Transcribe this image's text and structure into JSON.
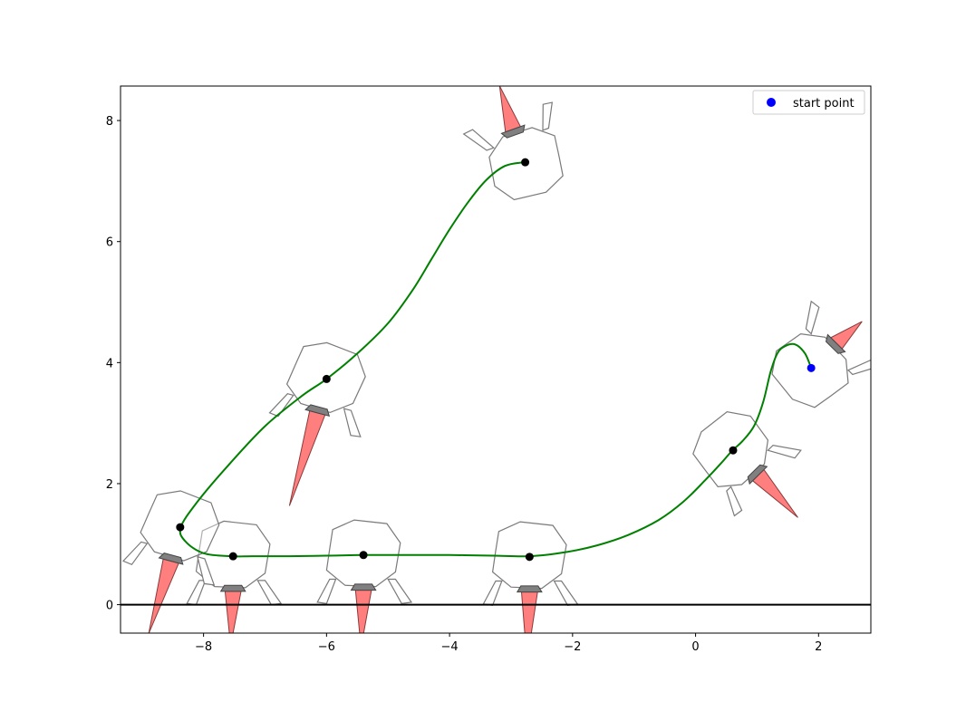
{
  "chart_data": {
    "type": "scatter",
    "title": "",
    "xlabel": "",
    "ylabel": "",
    "xlim": [
      -9.35,
      2.85
    ],
    "ylim": [
      -0.47,
      8.57
    ],
    "xticks": [
      -8,
      -6,
      -4,
      -2,
      0,
      2
    ],
    "yticks": [
      0,
      2,
      4,
      6,
      8
    ],
    "xtick_labels": [
      "−8",
      "−6",
      "−4",
      "−2",
      "0",
      "2"
    ],
    "ytick_labels": [
      "0",
      "2",
      "4",
      "6",
      "8"
    ],
    "grid": false,
    "legend": {
      "placement": "top-right",
      "entries": [
        {
          "label": "start point",
          "color": "#0000ff",
          "marker": "circle"
        }
      ]
    },
    "colors": {
      "trajectory": "#008000",
      "keyframe": "#000000",
      "start": "#0000ff",
      "ground": "#000000",
      "body_outline": "#7a7a7a",
      "flame": "#ff7f7f",
      "nozzle": "#808080"
    },
    "ground_line_y": 0,
    "start_point": {
      "x": 1.88,
      "y": 3.91
    },
    "trajectory": {
      "x": [
        1.88,
        1.78,
        1.62,
        1.45,
        1.33,
        1.22,
        1.1,
        0.95,
        0.76,
        0.6,
        0.4,
        0.15,
        -0.2,
        -0.6,
        -1.1,
        -1.6,
        -2.1,
        -2.7,
        -3.3,
        -4.0,
        -4.7,
        -5.4,
        -6.0,
        -6.6,
        -7.2,
        -7.55,
        -8.0,
        -8.3,
        -8.37,
        -8.1,
        -7.6,
        -7.0,
        -6.4,
        -6.0,
        -5.5,
        -5.0,
        -4.6,
        -4.3,
        -4.0,
        -3.7,
        -3.4,
        -3.1,
        -2.8
      ],
      "y": [
        3.91,
        4.15,
        4.3,
        4.27,
        4.15,
        3.85,
        3.35,
        2.95,
        2.7,
        2.55,
        2.32,
        2.05,
        1.7,
        1.4,
        1.15,
        0.98,
        0.87,
        0.8,
        0.81,
        0.82,
        0.82,
        0.82,
        0.81,
        0.8,
        0.8,
        0.8,
        0.85,
        1.05,
        1.28,
        1.7,
        2.3,
        2.95,
        3.45,
        3.73,
        4.15,
        4.65,
        5.2,
        5.7,
        6.2,
        6.65,
        7.02,
        7.25,
        7.31
      ]
    },
    "keyframes": {
      "x": [
        1.88,
        0.61,
        -2.7,
        -5.4,
        -7.52,
        -8.38,
        -6.0,
        -2.77
      ],
      "y": [
        3.91,
        2.55,
        0.79,
        0.82,
        0.8,
        1.28,
        3.73,
        7.31
      ]
    },
    "robot_poses": [
      {
        "x": 1.88,
        "y": 3.91,
        "angle": 135,
        "thrust": 0.55
      },
      {
        "x": 0.61,
        "y": 2.55,
        "angle": 45,
        "thrust": 0.95
      },
      {
        "x": -2.7,
        "y": 0.79,
        "angle": 0,
        "thrust": 1.15
      },
      {
        "x": -5.4,
        "y": 0.82,
        "angle": 0,
        "thrust": 0.95
      },
      {
        "x": -7.52,
        "y": 0.8,
        "angle": 0,
        "thrust": 0.9
      },
      {
        "x": -8.38,
        "y": 1.28,
        "angle": -15,
        "thrust": 1.25
      },
      {
        "x": -6.0,
        "y": 3.73,
        "angle": -15,
        "thrust": 1.6
      },
      {
        "x": -2.77,
        "y": 7.31,
        "angle": -160,
        "thrust": 0.75
      }
    ]
  }
}
